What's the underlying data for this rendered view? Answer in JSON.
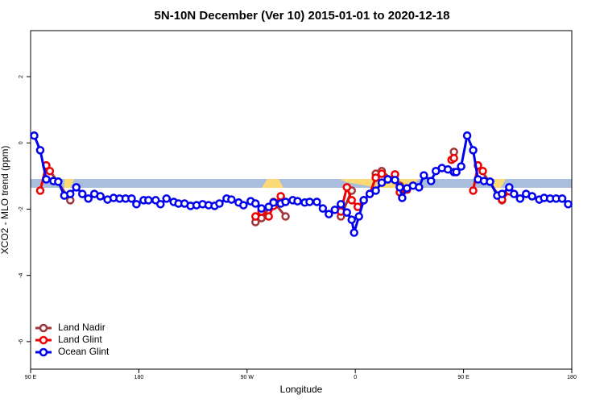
{
  "chart_data": {
    "type": "line",
    "title": "5N-10N December (Ver 10)   2015-01-01 to 2020-12-18",
    "x_label": "Longitude",
    "y_label": "XCO2 - MLO trend (ppm)",
    "xlim": [
      90,
      540
    ],
    "xticks": [
      {
        "value": 90,
        "label": "90 E"
      },
      180,
      {
        "value": 270,
        "label": "90 W"
      },
      {
        "value": 360,
        "label": "0"
      },
      {
        "value": 450,
        "label": "90 E"
      },
      {
        "value": 540,
        "label": "180"
      }
    ],
    "ylim": [
      -6.83,
      3.39
    ],
    "yticks": [
      -6,
      -4,
      -2,
      0,
      2
    ],
    "legend": "bottom-left",
    "series": [
      {
        "name": "Land Nadir",
        "color": "#a0353a",
        "x": [
          103,
          123,
          200,
          277,
          282,
          292,
          302,
          320,
          348,
          357,
          370,
          377,
          382,
          397,
          420,
          442,
          450,
          462,
          482
        ],
        "values": [
          -0.68,
          -1.73,
          null,
          -2.39,
          -2.27,
          -1.78,
          -2.22,
          null,
          -2.22,
          -1.44,
          null,
          -0.93,
          -0.85,
          -1.29,
          null,
          -0.27,
          null,
          -0.68,
          -1.73
        ]
      },
      {
        "name": "Land Glint",
        "color": "#ee0000",
        "x": [
          98,
          103,
          106,
          200,
          277,
          282,
          288,
          292,
          298,
          320,
          348,
          353,
          357,
          362,
          367,
          372,
          377,
          382,
          387,
          393,
          397,
          403,
          420,
          440,
          442,
          450,
          458,
          462,
          466,
          475,
          482,
          488
        ],
        "values": [
          -1.44,
          -0.68,
          -0.85,
          null,
          -2.22,
          -2.07,
          -2.22,
          -1.9,
          -1.61,
          null,
          -2.07,
          -1.34,
          -1.73,
          -1.93,
          -1.73,
          -1.54,
          -1.05,
          -0.93,
          -1.1,
          -0.95,
          -1.49,
          -1.41,
          null,
          -0.51,
          -0.46,
          null,
          -1.44,
          -0.68,
          -0.85,
          null,
          -1.71,
          -1.46
        ]
      },
      {
        "name": "Ocean Glint",
        "color": "#0000ee",
        "x": [
          93,
          98,
          103,
          109,
          113,
          118,
          123,
          128,
          133,
          138,
          143,
          148,
          154,
          159,
          164,
          169,
          174,
          178,
          184,
          188,
          194,
          198,
          203,
          209,
          213,
          218,
          223,
          228,
          233,
          238,
          243,
          247,
          253,
          257,
          263,
          267,
          273,
          277,
          282,
          288,
          292,
          298,
          302,
          308,
          312,
          318,
          322,
          328,
          333,
          338,
          343,
          348,
          353,
          357,
          359,
          363,
          367,
          372,
          377,
          382,
          387,
          393,
          397,
          399,
          403,
          408,
          413,
          417,
          423,
          427,
          432,
          437,
          442,
          444,
          448,
          453,
          458,
          462,
          467,
          472,
          478,
          482,
          488,
          492,
          497,
          502,
          507,
          513,
          517,
          522,
          527,
          532,
          537
        ],
        "values": [
          0.22,
          -0.22,
          -1.1,
          -1.15,
          -1.17,
          -1.59,
          -1.54,
          -1.34,
          -1.54,
          -1.68,
          -1.54,
          -1.61,
          -1.71,
          -1.66,
          -1.68,
          -1.68,
          -1.68,
          -1.85,
          -1.73,
          -1.73,
          -1.73,
          -1.85,
          -1.68,
          -1.78,
          -1.83,
          -1.83,
          -1.9,
          -1.88,
          -1.85,
          -1.88,
          -1.9,
          -1.83,
          -1.68,
          -1.71,
          -1.8,
          -1.88,
          -1.76,
          -1.83,
          -1.98,
          -1.93,
          -1.8,
          -1.83,
          -1.78,
          -1.73,
          -1.76,
          -1.8,
          -1.78,
          -1.78,
          -1.98,
          -2.15,
          -2.02,
          -1.85,
          -2.1,
          -2.32,
          -2.71,
          -2.22,
          -1.73,
          -1.54,
          -1.44,
          -1.2,
          -1.1,
          -1.12,
          -1.34,
          -1.66,
          -1.37,
          -1.29,
          -1.34,
          -0.98,
          -1.15,
          -0.85,
          -0.76,
          -0.8,
          -0.88,
          -0.88,
          -0.71,
          0.22,
          -0.22,
          -1.1,
          -1.15,
          -1.17,
          -1.59,
          -1.54,
          -1.34,
          -1.54,
          -1.68,
          -1.54,
          -1.61,
          -1.71,
          -1.66,
          -1.68,
          -1.68,
          -1.68,
          -1.85
        ]
      }
    ]
  }
}
